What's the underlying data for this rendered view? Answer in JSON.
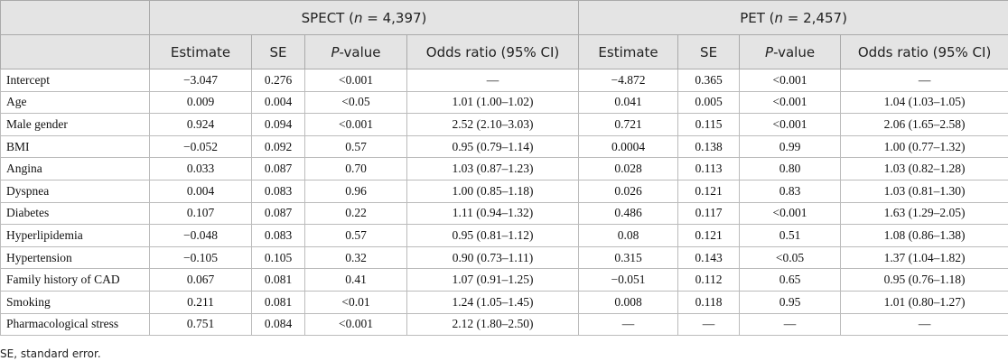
{
  "table": {
    "groups": [
      {
        "parts": [
          "SPECT (",
          "n",
          " = 4,397)"
        ]
      },
      {
        "parts": [
          "PET (",
          "n",
          " = 2,457)"
        ]
      }
    ],
    "columns": [
      {
        "parts": [
          "Estimate"
        ]
      },
      {
        "parts": [
          "SE"
        ]
      },
      {
        "parts": [
          "P",
          "-value"
        ]
      },
      {
        "parts": [
          "Odds ratio (95% CI)"
        ]
      },
      {
        "parts": [
          "Estimate"
        ]
      },
      {
        "parts": [
          "SE"
        ]
      },
      {
        "parts": [
          "P",
          "-value"
        ]
      },
      {
        "parts": [
          "Odds ratio (95% CI)"
        ]
      }
    ],
    "rows": [
      [
        "Intercept",
        "−3.047",
        "0.276",
        "<0.001",
        "—",
        "−4.872",
        "0.365",
        "<0.001",
        "—"
      ],
      [
        "Age",
        "0.009",
        "0.004",
        "<0.05",
        "1.01 (1.00–1.02)",
        "0.041",
        "0.005",
        "<0.001",
        "1.04 (1.03–1.05)"
      ],
      [
        "Male gender",
        "0.924",
        "0.094",
        "<0.001",
        "2.52 (2.10–3.03)",
        "0.721",
        "0.115",
        "<0.001",
        "2.06 (1.65–2.58)"
      ],
      [
        "BMI",
        "−0.052",
        "0.092",
        "0.57",
        "0.95 (0.79–1.14)",
        "0.0004",
        "0.138",
        "0.99",
        "1.00 (0.77–1.32)"
      ],
      [
        "Angina",
        "0.033",
        "0.087",
        "0.70",
        "1.03 (0.87–1.23)",
        "0.028",
        "0.113",
        "0.80",
        "1.03 (0.82–1.28)"
      ],
      [
        "Dyspnea",
        "0.004",
        "0.083",
        "0.96",
        "1.00 (0.85–1.18)",
        "0.026",
        "0.121",
        "0.83",
        "1.03 (0.81–1.30)"
      ],
      [
        "Diabetes",
        "0.107",
        "0.087",
        "0.22",
        "1.11 (0.94–1.32)",
        "0.486",
        "0.117",
        "<0.001",
        "1.63 (1.29–2.05)"
      ],
      [
        "Hyperlipidemia",
        "−0.048",
        "0.083",
        "0.57",
        "0.95 (0.81–1.12)",
        "0.08",
        "0.121",
        "0.51",
        "1.08 (0.86–1.38)"
      ],
      [
        "Hypertension",
        "−0.105",
        "0.105",
        "0.32",
        "0.90 (0.73–1.11)",
        "0.315",
        "0.143",
        "<0.05",
        "1.37 (1.04–1.82)"
      ],
      [
        "Family history of CAD",
        "0.067",
        "0.081",
        "0.41",
        "1.07 (0.91–1.25)",
        "−0.051",
        "0.112",
        "0.65",
        "0.95 (0.76–1.18)"
      ],
      [
        "Smoking",
        "0.211",
        "0.081",
        "<0.01",
        "1.24 (1.05–1.45)",
        "0.008",
        "0.118",
        "0.95",
        "1.01 (0.80–1.27)"
      ],
      [
        "Pharmacological stress",
        "0.751",
        "0.084",
        "<0.001",
        "2.12 (1.80–2.50)",
        "—",
        "—",
        "—",
        "—"
      ]
    ],
    "footnote": "SE, standard error."
  }
}
